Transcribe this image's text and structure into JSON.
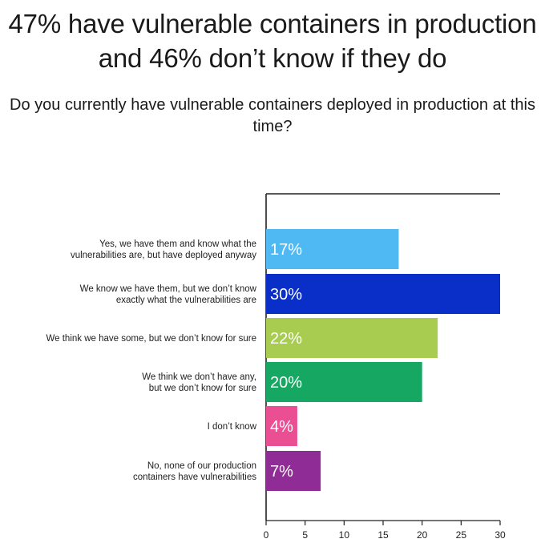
{
  "chart_data": {
    "type": "bar",
    "orientation": "horizontal",
    "title": "47% have vulnerable containers in production and 46% don’t know if they do",
    "subtitle": "Do you currently have vulnerable containers deployed in production at this time?",
    "categories": [
      [
        "Yes, we have them and know what the",
        "vulnerabilities are, but have deployed anyway"
      ],
      [
        "We know we have them, but we don’t know",
        "exactly what the vulnerabilities are"
      ],
      [
        "We think we have some, but we don’t know for sure"
      ],
      [
        "We think we don’t have any,",
        "but we don’t know for sure"
      ],
      [
        "I don’t know"
      ],
      [
        "No, none of our production",
        "containers have vulnerabilities"
      ]
    ],
    "values": [
      17,
      30,
      22,
      20,
      4,
      7
    ],
    "value_labels": [
      "17%",
      "30%",
      "22%",
      "20%",
      "4%",
      "7%"
    ],
    "colors": [
      "#4fb9f3",
      "#0a2ec8",
      "#a7cc4f",
      "#16a862",
      "#ea4f93",
      "#8f2c95"
    ],
    "xlim": [
      0,
      30
    ],
    "xticks": [
      0,
      5,
      10,
      15,
      20,
      25,
      30
    ],
    "grid": false,
    "legend": "none"
  }
}
